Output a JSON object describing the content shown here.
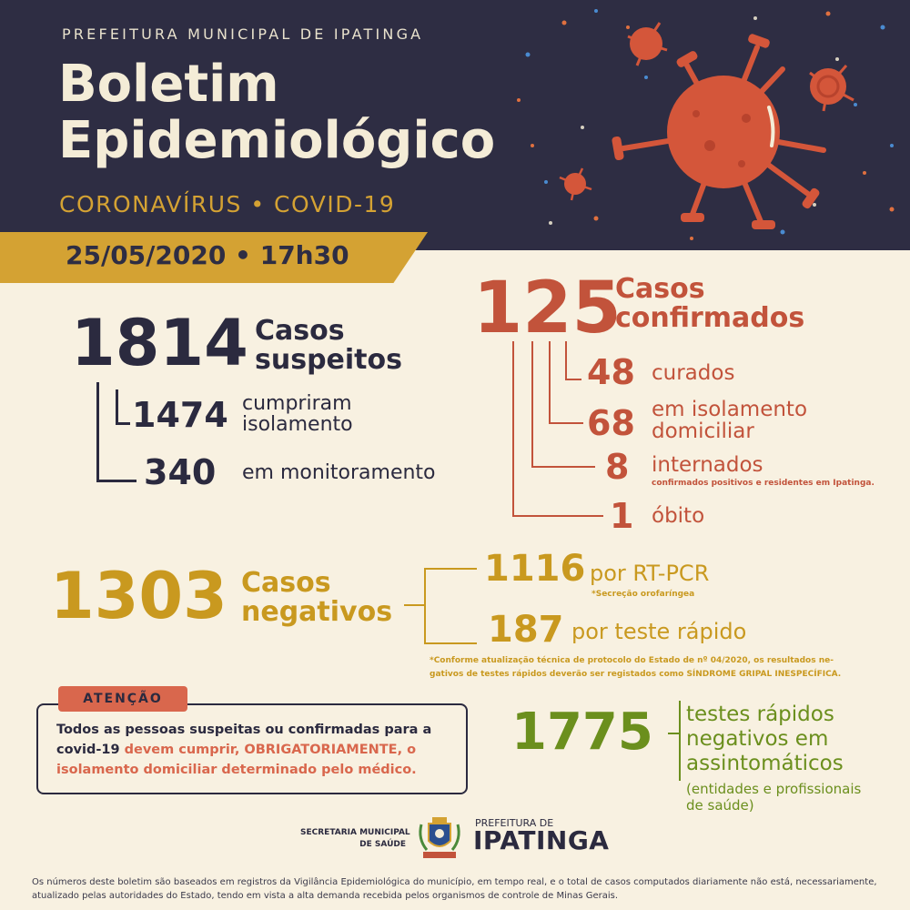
{
  "header": {
    "government": "PREFEITURA MUNICIPAL DE IPATINGA",
    "title_line1": "Boletim",
    "title_line2": "Epidemiológico",
    "subtitle": "CORONAVÍRUS • COVID-19",
    "date": "25/05/2020 • 17h30"
  },
  "suspects": {
    "total": "1814",
    "label_line1": "Casos",
    "label_line2": "suspeitos",
    "isolated_value": "1474",
    "isolated_label_line1": "cumpriram",
    "isolated_label_line2": "isolamento",
    "monitoring_value": "340",
    "monitoring_label": "em monitoramento"
  },
  "confirmed": {
    "total": "125",
    "label_line1": "Casos",
    "label_line2": "confirmados",
    "cured_value": "48",
    "cured_label": "curados",
    "home_isolation_value": "68",
    "home_isolation_label_line1": "em isolamento",
    "home_isolation_label_line2": "domiciliar",
    "hospitalized_value": "8",
    "hospitalized_label": "internados",
    "hospitalized_note": "confirmados positivos e residentes em Ipatinga.",
    "deaths_value": "1",
    "deaths_label": "óbito"
  },
  "negatives": {
    "total": "1303",
    "label_line1": "Casos",
    "label_line2": "negativos",
    "rtpcr_value": "1116",
    "rtpcr_label": "por RT-PCR",
    "rtpcr_note": "*Secreção orofaríngea",
    "rapid_value": "187",
    "rapid_label": "por teste rápido",
    "rapid_note_line1": "*Conforme atualização técnica de protocolo do Estado de nº 04/2020, os resultados ne-",
    "rapid_note_line2": "gativos de testes rápidos deverão ser registados como SÍNDROME GRIPAL INESPECÍFICA."
  },
  "asymptomatic": {
    "value": "1775",
    "label_line1": "testes rápidos",
    "label_line2": "negativos em",
    "label_line3": "assintomáticos",
    "note_line1": "(entidades e profissionais",
    "note_line2": "de saúde)"
  },
  "attention": {
    "tab": "ATENÇÃO",
    "text_part1": "Todos as pessoas suspeitas ou confirmadas para a covid-19 ",
    "text_part2": "devem cumprir, ",
    "text_part3": "OBRIGATORIAMENTE",
    "text_part4": ", o ",
    "text_part5": "isolamento domiciliar determinado pelo médico."
  },
  "logos": {
    "secretaria_line1": "SECRETARIA MUNICIPAL",
    "secretaria_line2": "DE SAÚDE",
    "prefeitura_small": "PREFEITURA DE",
    "prefeitura_big": "IPATINGA"
  },
  "footer": {
    "text": "Os números deste boletim são baseados em registros da Vigilância Epidemiológica do município, em tempo real, e o total de casos computados diariamente não está, necessariamente, atualizado pelas autoridades do Estado, tendo em vista a alta demanda recebida pelos organismos de controle de Minas Gerais."
  },
  "colors": {
    "header_bg": "#2e2d43",
    "page_bg": "#f8f1e1",
    "gold": "#c9991f",
    "red": "#c2533b",
    "dark": "#2b2a3f",
    "green": "#6b8f1d"
  }
}
